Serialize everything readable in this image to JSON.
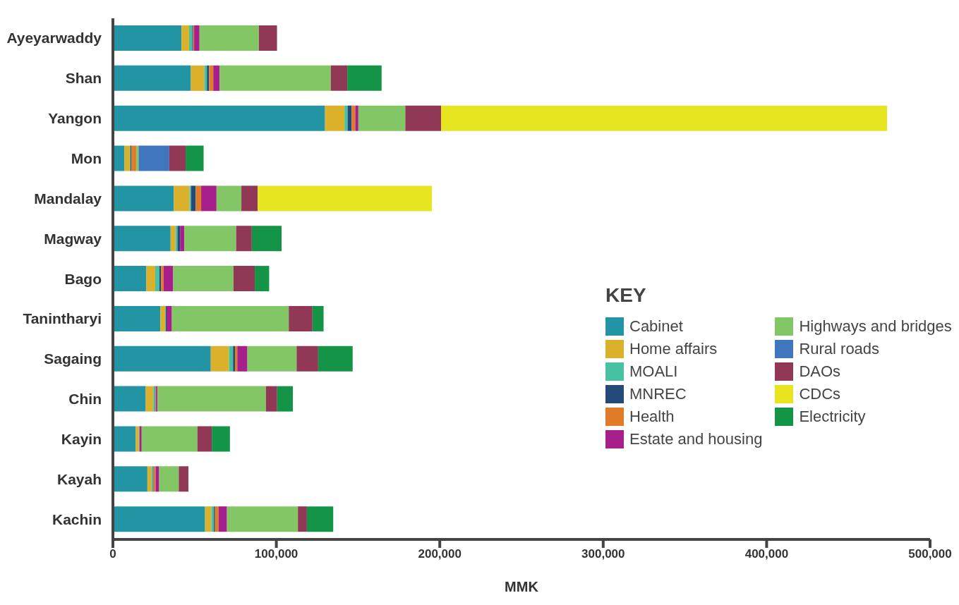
{
  "chart_data": {
    "type": "bar",
    "orientation": "horizontal",
    "stacked": true,
    "xlabel": "MMK",
    "legend_title": "KEY",
    "legend": "right",
    "categories": [
      "Ayeyarwaddy",
      "Shan",
      "Yangon",
      "Mon",
      "Mandalay",
      "Magway",
      "Bago",
      "Tanintharyi",
      "Sagaing",
      "Chin",
      "Kayin",
      "Kayah",
      "Kachin"
    ],
    "xlim": [
      0,
      500000
    ],
    "xticks": [
      {
        "value": 0,
        "label": "0"
      },
      {
        "value": 100000,
        "label": "100,000"
      },
      {
        "value": 200000,
        "label": "200,000"
      },
      {
        "value": 300000,
        "label": "300,000"
      },
      {
        "value": 400000,
        "label": "400,000"
      },
      {
        "value": 500000,
        "label": "500,000"
      }
    ],
    "series": [
      {
        "name": "Cabinet",
        "color": "#2394a4",
        "values": [
          42000,
          47700,
          129800,
          7100,
          37300,
          35300,
          20500,
          29100,
          59900,
          20100,
          14000,
          21100,
          56400
        ]
      },
      {
        "name": "Home affairs",
        "color": "#dbb02a",
        "values": [
          4600,
          8200,
          11900,
          3300,
          9600,
          3000,
          5400,
          2900,
          11100,
          4600,
          1900,
          2500,
          3800
        ]
      },
      {
        "name": "MOALI",
        "color": "#48c1a2",
        "values": [
          1900,
          1600,
          1900,
          400,
          900,
          1200,
          2500,
          400,
          2500,
          1000,
          400,
          900,
          1600
        ]
      },
      {
        "name": "MNREC",
        "color": "#234a78",
        "values": [
          600,
          1400,
          2500,
          600,
          2900,
          1600,
          1000,
          400,
          1200,
          400,
          0,
          400,
          700
        ]
      },
      {
        "name": "Health",
        "color": "#e07b28",
        "values": [
          600,
          2500,
          2200,
          2900,
          3300,
          0,
          1600,
          0,
          1400,
          300,
          0,
          1200,
          2200
        ]
      },
      {
        "name": "Estate and housing",
        "color": "#a61f8a",
        "values": [
          3300,
          3900,
          1900,
          0,
          9400,
          2600,
          5900,
          3300,
          6200,
          900,
          1300,
          2200,
          5100
        ]
      },
      {
        "name": "Highways and bridges",
        "color": "#82c665",
        "values": [
          36300,
          68000,
          28700,
          1400,
          15200,
          31700,
          36900,
          71500,
          30100,
          66300,
          34100,
          12000,
          43400
        ]
      },
      {
        "name": "Rural roads",
        "color": "#4076bd",
        "values": [
          0,
          0,
          0,
          18800,
          0,
          0,
          0,
          0,
          0,
          0,
          0,
          0,
          0
        ]
      },
      {
        "name": "DAOs",
        "color": "#903855",
        "values": [
          11100,
          10100,
          21900,
          10000,
          10000,
          9600,
          13000,
          14500,
          13200,
          6900,
          8800,
          5900,
          5500
        ]
      },
      {
        "name": "CDCs",
        "color": "#e6e51f",
        "values": [
          0,
          0,
          272900,
          0,
          106600,
          0,
          0,
          0,
          0,
          0,
          0,
          0,
          0
        ]
      },
      {
        "name": "Electricity",
        "color": "#149446",
        "values": [
          0,
          21000,
          0,
          11000,
          0,
          18200,
          8800,
          6800,
          21100,
          9600,
          11100,
          0,
          16100
        ]
      }
    ]
  }
}
